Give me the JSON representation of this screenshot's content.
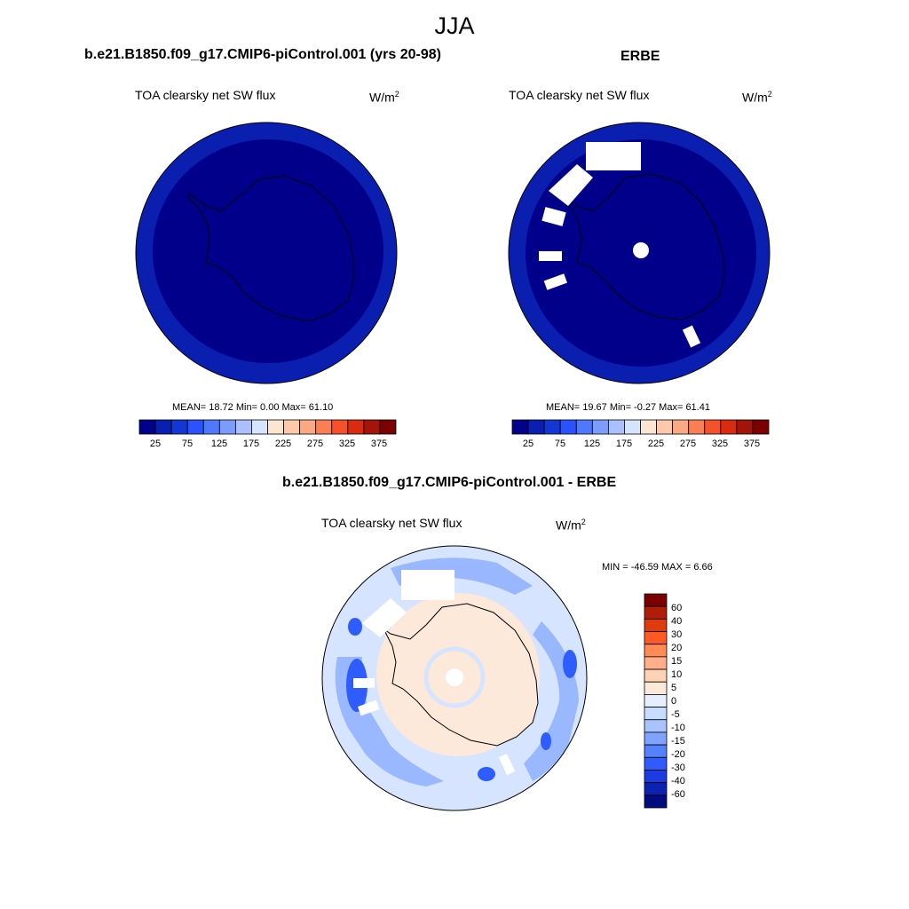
{
  "figure": {
    "season": "JJA"
  },
  "panels": {
    "model": {
      "title": "b.e21.B1850.f09_g17.CMIP6-piControl.001 (yrs 20-98)",
      "variable": "TOA clearsky net SW flux",
      "units_base": "W/m",
      "units_exp": "2",
      "stats": "MEAN=  18.72  Min=   0.00  Max=  61.10"
    },
    "obs": {
      "title": "ERBE",
      "variable": "TOA clearsky net SW flux",
      "units_base": "W/m",
      "units_exp": "2",
      "stats": "MEAN=  19.67  Min=  -0.27  Max=  61.41"
    },
    "diff": {
      "title": "b.e21.B1850.f09_g17.CMIP6-piControl.001 - ERBE",
      "variable": "TOA clearsky net SW flux",
      "units_base": "W/m",
      "units_exp": "2",
      "stats": "MIN = -46.59 MAX =   6.66"
    }
  },
  "colorbar_main": {
    "colors": [
      "#00008b",
      "#0a1fb0",
      "#1437d4",
      "#2a52ff",
      "#4f78ff",
      "#7c9cff",
      "#aac0ff",
      "#d6e4ff",
      "#fde5d0",
      "#fdc9aa",
      "#fca883",
      "#fb7e55",
      "#f5512a",
      "#d92b0f",
      "#a3140a",
      "#7d0000"
    ],
    "labels": [
      "25",
      "75",
      "125",
      "175",
      "225",
      "275",
      "325",
      "375"
    ]
  },
  "colorbar_diff": {
    "colors": [
      "#7a0000",
      "#b01e08",
      "#e03a0f",
      "#ff5a25",
      "#ff8a55",
      "#ffb08a",
      "#ffd2b5",
      "#fde9da",
      "#e6efff",
      "#c8dcff",
      "#a8c3ff",
      "#7fa3ff",
      "#5482ff",
      "#2e5cff",
      "#1a3ce0",
      "#0c22b0",
      "#000c80"
    ],
    "labels": [
      "60",
      "40",
      "30",
      "20",
      "15",
      "10",
      "5",
      "0",
      "-5",
      "-10",
      "-15",
      "-20",
      "-30",
      "-40",
      "-60"
    ]
  }
}
